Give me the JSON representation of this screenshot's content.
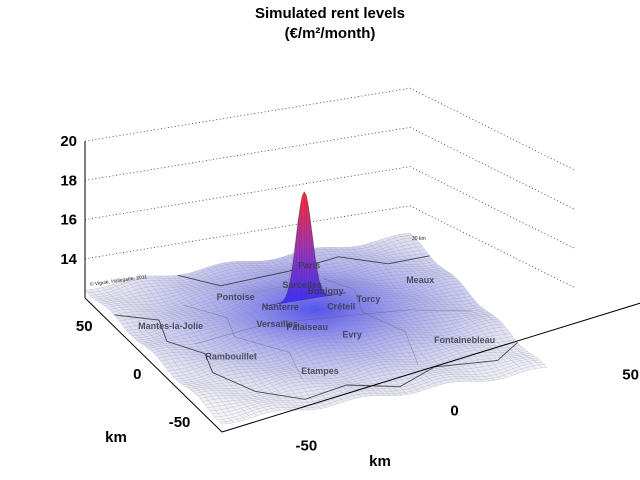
{
  "chart_data": {
    "type": "surface3d",
    "title": "Simulated rent levels",
    "subtitle": "(€/m²/month)",
    "xlabel": "km",
    "ylabel": "km",
    "zlabel": "",
    "x_ticks": [
      "-50",
      "0",
      "50"
    ],
    "y_ticks": [
      "50",
      "0",
      "-50"
    ],
    "z_ticks": [
      "14",
      "16",
      "18",
      "20"
    ],
    "xlim": [
      -70,
      70
    ],
    "ylim": [
      -70,
      70
    ],
    "zlim": [
      12,
      20
    ],
    "grid": true,
    "peak": {
      "x": 0,
      "y": 12,
      "z": 18.9
    },
    "base_level": 12.5,
    "colors": {
      "low": "#e8e8ee",
      "mid": "#2a2aff",
      "high": "#ff2020"
    },
    "places": [
      {
        "name": "Pontoise",
        "x": -22,
        "y": 30
      },
      {
        "name": "Sarcelles",
        "x": 5,
        "y": 26
      },
      {
        "name": "Meaux",
        "x": 55,
        "y": 24
      },
      {
        "name": "Mantes-la-Jolie",
        "x": -55,
        "y": 18
      },
      {
        "name": "Bobigny",
        "x": 10,
        "y": 14
      },
      {
        "name": "Torcy",
        "x": 26,
        "y": 8
      },
      {
        "name": "Nanterre",
        "x": -12,
        "y": 8
      },
      {
        "name": "Paris",
        "x": 0,
        "y": 7
      },
      {
        "name": "Créteil",
        "x": 10,
        "y": -2
      },
      {
        "name": "Versailles",
        "x": -18,
        "y": -3
      },
      {
        "name": "Palaiseau",
        "x": -8,
        "y": -10
      },
      {
        "name": "Evry",
        "x": 8,
        "y": -18
      },
      {
        "name": "Rambouillet",
        "x": -45,
        "y": -20
      },
      {
        "name": "Etampes",
        "x": -16,
        "y": -42
      },
      {
        "name": "Fontainebleau",
        "x": 48,
        "y": -38
      }
    ],
    "credit": "© Viguié, Hallegatte, 2011",
    "scalebar": "30 km"
  }
}
